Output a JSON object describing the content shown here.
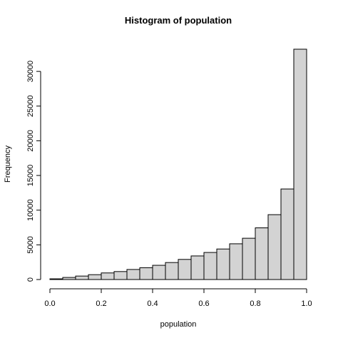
{
  "chart_data": {
    "type": "bar",
    "title": "Histogram of population",
    "xlabel": "population",
    "ylabel": "Frequency",
    "x_breaks": [
      0.0,
      0.05,
      0.1,
      0.15,
      0.2,
      0.25,
      0.3,
      0.35,
      0.4,
      0.45,
      0.5,
      0.55,
      0.6,
      0.65,
      0.7,
      0.75,
      0.8,
      0.85,
      0.9,
      0.95,
      1.0
    ],
    "values": [
      100,
      300,
      500,
      700,
      950,
      1150,
      1450,
      1700,
      2050,
      2450,
      2900,
      3400,
      3900,
      4400,
      5150,
      5950,
      7450,
      9350,
      13050,
      33200
    ],
    "xlim": [
      0,
      1
    ],
    "ylim": [
      0,
      33200
    ],
    "x_ticks": [
      0.0,
      0.2,
      0.4,
      0.6,
      0.8,
      1.0
    ],
    "x_tick_labels": [
      "0.0",
      "0.2",
      "0.4",
      "0.6",
      "0.8",
      "1.0"
    ],
    "y_ticks": [
      0,
      5000,
      10000,
      15000,
      20000,
      25000,
      30000
    ],
    "y_tick_labels": [
      "0",
      "5000",
      "10000",
      "15000",
      "20000",
      "25000",
      "30000"
    ],
    "bar_fill": "#d3d3d3",
    "bar_stroke": "#000000",
    "grid": false,
    "legend": "none"
  }
}
